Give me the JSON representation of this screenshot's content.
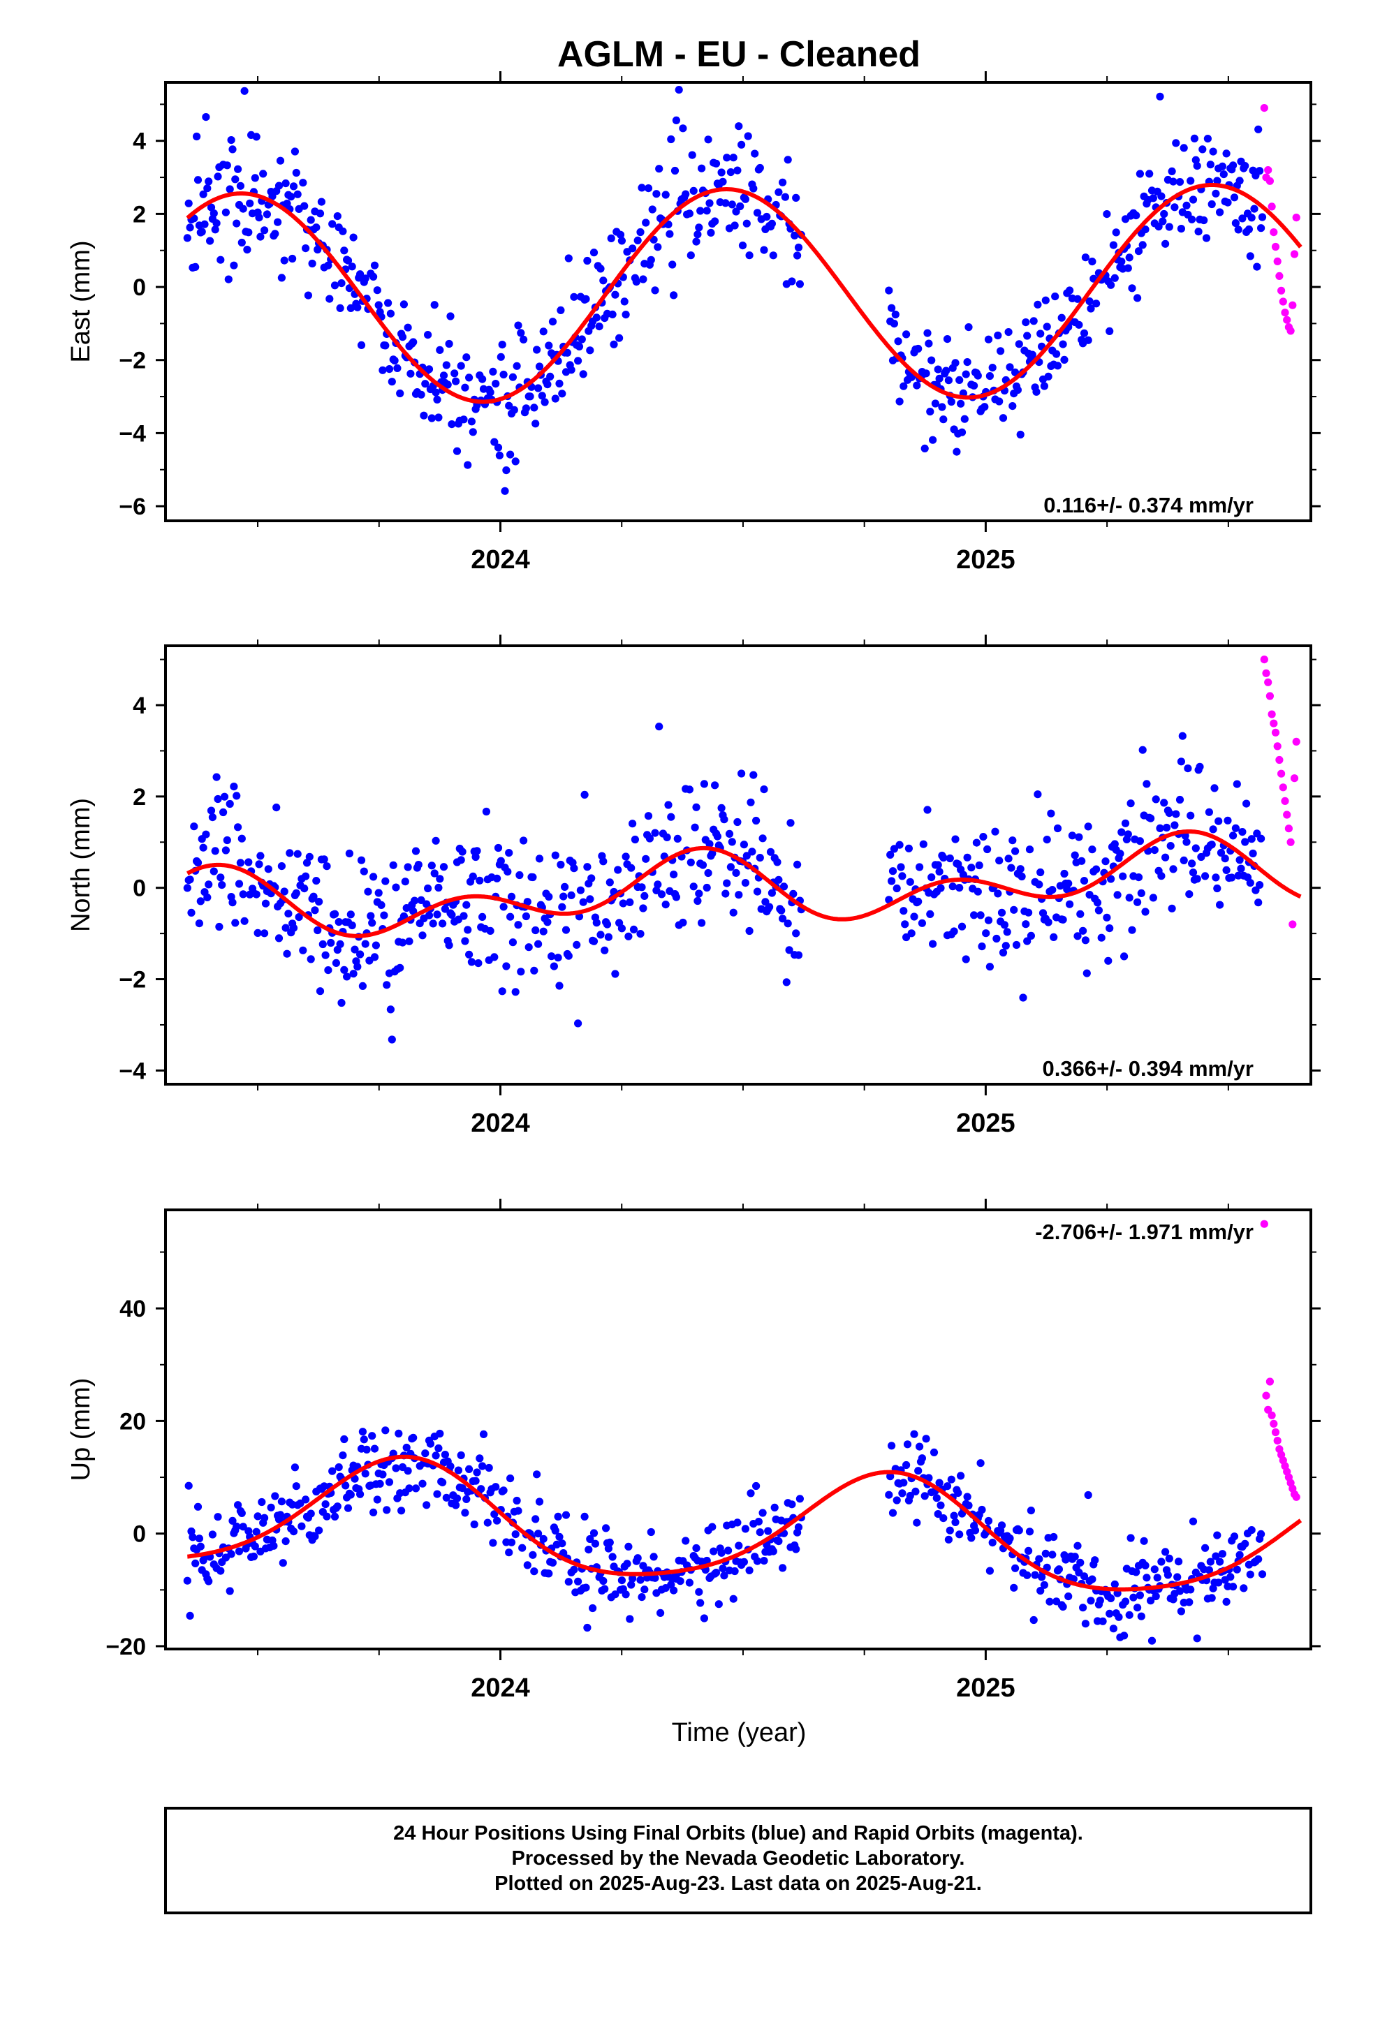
{
  "figure": {
    "title": "AGLM  - EU - Cleaned",
    "xlabel": "Time (year)",
    "footer": [
      "24 Hour Positions Using Final Orbits (blue) and Rapid Orbits (magenta).",
      "Processed by the Nevada Geodetic Laboratory.",
      "Plotted on 2025-Aug-23. Last data on 2025-Aug-21."
    ]
  },
  "chart_data": [
    {
      "type": "scatter",
      "name": "east",
      "ylabel": "East (mm)",
      "ylim": [
        -6.4,
        5.6
      ],
      "yticks": [
        -6,
        -4,
        -2,
        0,
        2,
        4
      ],
      "ytick_labels": [
        "−6",
        "−4",
        "−2",
        "0",
        "2",
        "4"
      ],
      "xlim": [
        2023.31,
        2025.67
      ],
      "xticks_major": [
        2024,
        2025
      ],
      "xtick_labels": [
        "2024",
        "2025"
      ],
      "rate_label": "0.116+/- 0.374 mm/yr",
      "rate_position": "bottom-right",
      "grid": false,
      "fit": {
        "mean": -0.2,
        "trend": 0.116,
        "a": -2.81,
        "b": 0.63,
        "a2": 0.0,
        "b2": 0.0
      },
      "noise": 0.85,
      "gap": [
        2024.62,
        2024.8
      ],
      "rapid_from": 2025.57,
      "rapid_end": 2025.64,
      "series": [
        {
          "role": "final-orbits",
          "color": "#0000ff"
        },
        {
          "role": "rapid-orbits",
          "color": "#ff00ff",
          "y": [
            4.9,
            3.0,
            3.2,
            2.9,
            2.2,
            1.5,
            1.1,
            0.7,
            0.3,
            -0.1,
            -0.4,
            -0.7,
            -0.9,
            -1.1,
            -1.2,
            -0.5,
            0.9,
            1.9
          ]
        },
        {
          "role": "fit",
          "color": "#ff0000"
        }
      ]
    },
    {
      "type": "scatter",
      "name": "north",
      "ylabel": "North (mm)",
      "ylim": [
        -4.3,
        5.3
      ],
      "yticks": [
        -4,
        -2,
        0,
        2,
        4
      ],
      "ytick_labels": [
        "−4",
        "−2",
        "0",
        "2",
        "4"
      ],
      "xlim": [
        2023.31,
        2025.67
      ],
      "xticks_major": [
        2024,
        2025
      ],
      "xtick_labels": [
        "2024",
        "2025"
      ],
      "rate_label": "0.366+/- 0.394 mm/yr",
      "rate_position": "bottom-right",
      "grid": false,
      "fit": {
        "mean": -0.05,
        "trend": 0.366,
        "a": -0.32,
        "b": 0.35,
        "a2": 0.3,
        "b2": -0.4
      },
      "noise": 0.8,
      "gap": [
        2024.62,
        2024.8
      ],
      "rapid_from": 2025.57,
      "rapid_end": 2025.64,
      "series": [
        {
          "role": "final-orbits",
          "color": "#0000ff"
        },
        {
          "role": "rapid-orbits",
          "color": "#ff00ff",
          "y": [
            5.0,
            4.7,
            4.5,
            4.2,
            3.8,
            3.6,
            3.4,
            3.1,
            2.8,
            2.5,
            2.2,
            1.9,
            1.6,
            1.3,
            1.0,
            -0.8,
            2.4,
            3.2
          ]
        },
        {
          "role": "fit",
          "color": "#ff0000"
        }
      ]
    },
    {
      "type": "scatter",
      "name": "up",
      "ylabel": "Up (mm)",
      "ylim": [
        -20.5,
        57.5
      ],
      "yticks": [
        -20,
        0,
        20,
        40
      ],
      "ytick_labels": [
        "−20",
        "0",
        "20",
        "40"
      ],
      "xlim": [
        2023.31,
        2025.67
      ],
      "xticks_major": [
        2024,
        2025
      ],
      "xtick_labels": [
        "2024",
        "2025"
      ],
      "rate_label": "-2.706+/- 1.971 mm/yr",
      "rate_position": "top-right",
      "grid": false,
      "fit": {
        "mean": 0.5,
        "trend": -2.706,
        "a": 2.85,
        "b": -9.3,
        "a2": -1.0,
        "b2": -1.2
      },
      "noise": 3.8,
      "gap": [
        2024.62,
        2024.8
      ],
      "rapid_from": 2025.57,
      "rapid_end": 2025.64,
      "series": [
        {
          "role": "final-orbits",
          "color": "#0000ff"
        },
        {
          "role": "rapid-orbits",
          "color": "#ff00ff",
          "y": [
            55.0,
            24.5,
            22.0,
            27.0,
            21.0,
            19.5,
            18.0,
            16.5,
            15.0,
            14.0,
            13.0,
            12.0,
            11.0,
            10.0,
            9.0,
            8.0,
            7.0,
            6.5
          ]
        },
        {
          "role": "fit",
          "color": "#ff0000"
        }
      ]
    }
  ]
}
